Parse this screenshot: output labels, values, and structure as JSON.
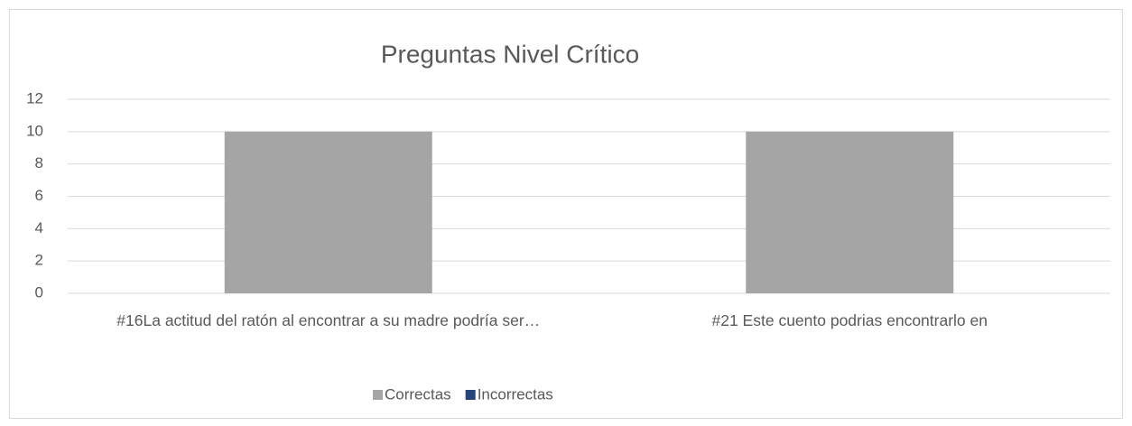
{
  "chart_data": {
    "type": "bar",
    "title": "Preguntas Nivel Crítico",
    "categories": [
      "#16La actitud del ratón al encontrar a su madre podría ser…",
      "#21  Este cuento podrias encontrarlo en"
    ],
    "series": [
      {
        "name": "Correctas",
        "color": "#a5a5a5",
        "values": [
          10,
          10
        ]
      },
      {
        "name": "Incorrectas",
        "color": "#264478",
        "values": [
          0,
          0
        ]
      }
    ],
    "ylim": [
      0,
      12
    ],
    "yticks": [
      0,
      2,
      4,
      6,
      8,
      10,
      12
    ],
    "grid": true,
    "legend": "bottom"
  }
}
